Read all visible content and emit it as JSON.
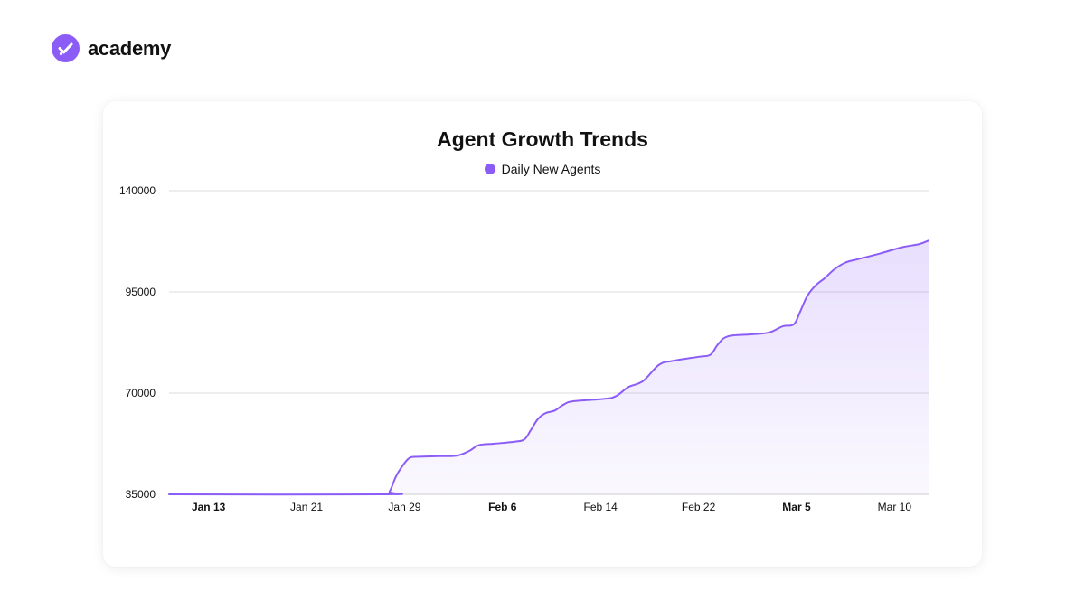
{
  "brand": {
    "name": "academy",
    "accent": "#8B5CF6",
    "icon": "check-icon"
  },
  "chart_data": {
    "type": "area",
    "title": "Agent Growth Trends",
    "legend": [
      {
        "name": "Daily New Agents",
        "color": "#8B5CF6"
      }
    ],
    "legend_position": "top-center",
    "grid": true,
    "ylim": [
      35000,
      140000
    ],
    "y_ticks": [
      35000,
      70000,
      95000,
      140000
    ],
    "x_ticks": [
      {
        "label": "Jan 13",
        "x": 3,
        "bold": true
      },
      {
        "label": "Jan 21",
        "x": 11,
        "bold": false
      },
      {
        "label": "Jan 29",
        "x": 19,
        "bold": false
      },
      {
        "label": "Feb 6",
        "x": 27,
        "bold": true
      },
      {
        "label": "Feb 14",
        "x": 35,
        "bold": false
      },
      {
        "label": "Feb 22",
        "x": 43,
        "bold": false
      },
      {
        "label": "Mar 5",
        "x": 51,
        "bold": true
      },
      {
        "label": "Mar 10",
        "x": 59,
        "bold": false
      }
    ],
    "xlim": [
      0,
      62
    ],
    "series": [
      {
        "name": "Daily New Agents",
        "color": "#8B5CF6",
        "points": [
          [
            0,
            35000
          ],
          [
            17.5,
            35000
          ],
          [
            18,
            36000
          ],
          [
            18.5,
            41000
          ],
          [
            19,
            44500
          ],
          [
            19.6,
            47500
          ],
          [
            20.3,
            48000
          ],
          [
            22,
            48200
          ],
          [
            23.5,
            48400
          ],
          [
            24.5,
            50000
          ],
          [
            25.3,
            52000
          ],
          [
            26.5,
            52500
          ],
          [
            28.2,
            53200
          ],
          [
            29,
            54000
          ],
          [
            29.5,
            57000
          ],
          [
            30.1,
            61000
          ],
          [
            30.7,
            63000
          ],
          [
            31.5,
            64000
          ],
          [
            32.2,
            66000
          ],
          [
            33,
            67200
          ],
          [
            35.5,
            68000
          ],
          [
            36.5,
            69000
          ],
          [
            37.5,
            71500
          ],
          [
            38.7,
            73000
          ],
          [
            40,
            77000
          ],
          [
            41.2,
            78000
          ],
          [
            43.3,
            79000
          ],
          [
            44.2,
            79500
          ],
          [
            44.8,
            82000
          ],
          [
            45.6,
            84000
          ],
          [
            47.5,
            84500
          ],
          [
            49,
            85000
          ],
          [
            50.1,
            86500
          ],
          [
            51,
            87000
          ],
          [
            51.5,
            90000
          ],
          [
            52.1,
            94000
          ],
          [
            52.8,
            98000
          ],
          [
            53.5,
            101000
          ],
          [
            54.3,
            105000
          ],
          [
            55.2,
            108000
          ],
          [
            56.2,
            109500
          ],
          [
            58,
            112000
          ],
          [
            59.8,
            114800
          ],
          [
            61.2,
            116200
          ],
          [
            62,
            117800
          ]
        ]
      }
    ]
  }
}
